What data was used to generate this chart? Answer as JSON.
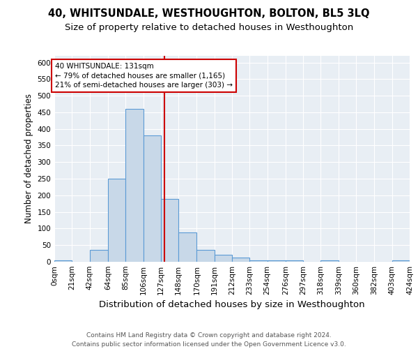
{
  "title": "40, WHITSUNDALE, WESTHOUGHTON, BOLTON, BL5 3LQ",
  "subtitle": "Size of property relative to detached houses in Westhoughton",
  "xlabel": "Distribution of detached houses by size in Westhoughton",
  "ylabel": "Number of detached properties",
  "bin_edges": [
    0,
    21,
    42,
    64,
    85,
    106,
    127,
    148,
    170,
    191,
    212,
    233,
    254,
    276,
    297,
    318,
    339,
    360,
    382,
    403,
    424
  ],
  "bin_labels": [
    "0sqm",
    "21sqm",
    "42sqm",
    "64sqm",
    "85sqm",
    "106sqm",
    "127sqm",
    "148sqm",
    "170sqm",
    "191sqm",
    "212sqm",
    "233sqm",
    "254sqm",
    "276sqm",
    "297sqm",
    "318sqm",
    "339sqm",
    "360sqm",
    "382sqm",
    "403sqm",
    "424sqm"
  ],
  "counts": [
    5,
    0,
    35,
    250,
    460,
    380,
    190,
    88,
    35,
    20,
    13,
    5,
    5,
    5,
    0,
    5,
    0,
    0,
    0,
    5
  ],
  "bar_facecolor": "#c8d8e8",
  "bar_edgecolor": "#5b9bd5",
  "property_size": 131,
  "vline_color": "#cc0000",
  "annotation_text": "40 WHITSUNDALE: 131sqm\n← 79% of detached houses are smaller (1,165)\n21% of semi-detached houses are larger (303) →",
  "annotation_box_color": "#ffffff",
  "annotation_box_edgecolor": "#cc0000",
  "ylim": [
    0,
    620
  ],
  "yticks": [
    0,
    50,
    100,
    150,
    200,
    250,
    300,
    350,
    400,
    450,
    500,
    550,
    600
  ],
  "background_color": "#e8eef4",
  "footer_line1": "Contains HM Land Registry data © Crown copyright and database right 2024.",
  "footer_line2": "Contains public sector information licensed under the Open Government Licence v3.0.",
  "title_fontsize": 10.5,
  "subtitle_fontsize": 9.5,
  "xlabel_fontsize": 9.5,
  "ylabel_fontsize": 8.5,
  "tick_fontsize": 7.5,
  "annotation_fontsize": 7.5,
  "footer_fontsize": 6.5
}
